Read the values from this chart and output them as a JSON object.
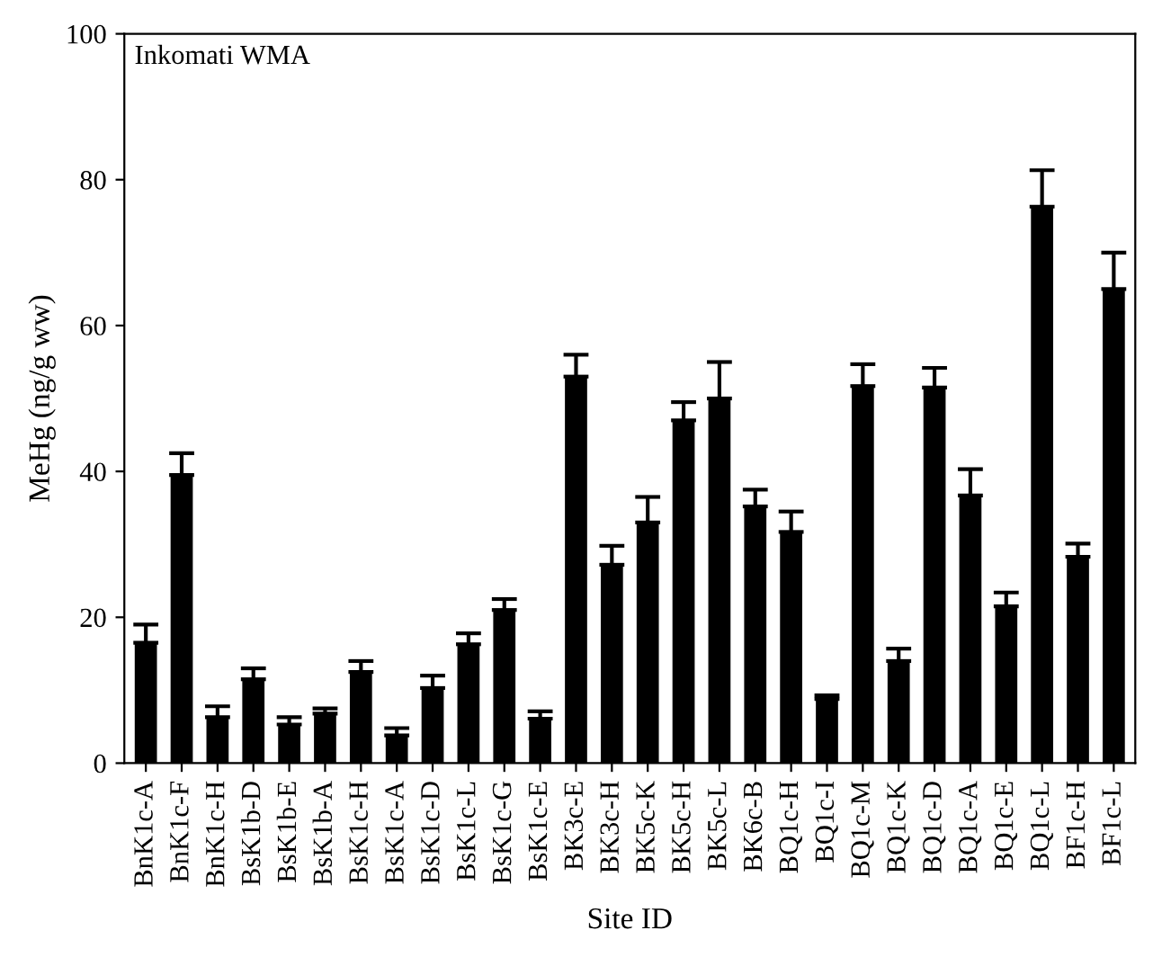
{
  "chart_data": {
    "type": "bar",
    "categories": [
      "BnK1c-A",
      "BnK1c-F",
      "BnK1c-H",
      "BsK1b-D",
      "BsK1b-E",
      "BsK1b-A",
      "BsK1c-H",
      "BsK1c-A",
      "BsK1c-D",
      "BsK1c-L",
      "BsK1c-G",
      "BsK1c-E",
      "BK3c-E",
      "BK3c-H",
      "BK5c-K",
      "BK5c-H",
      "BK5c-L",
      "BK6c-B",
      "BQ1c-H",
      "BQ1c-I",
      "BQ1c-M",
      "BQ1c-K",
      "BQ1c-D",
      "BQ1c-A",
      "BQ1c-E",
      "BQ1c-L",
      "BF1c-H",
      "BF1c-L"
    ],
    "values": [
      16.5,
      39.5,
      6.3,
      11.5,
      5.3,
      6.8,
      12.5,
      3.8,
      10.3,
      16.3,
      21,
      6.1,
      53,
      27.2,
      33,
      47,
      50,
      35.2,
      31.7,
      8.8,
      51.7,
      14,
      51.5,
      36.7,
      21.5,
      76.3,
      28.3,
      65
    ],
    "errors": [
      2.5,
      3,
      1.5,
      1.5,
      1,
      0.7,
      1.5,
      1,
      1.7,
      1.5,
      1.5,
      1,
      3,
      2.6,
      3.5,
      2.5,
      5,
      2.3,
      2.8,
      0.5,
      3,
      1.7,
      2.7,
      3.6,
      1.9,
      5,
      1.8,
      5
    ],
    "color": "#000000",
    "xlabel": "Site ID",
    "ylabel": "MeHg (ng/g ww)",
    "annotations": [
      "Inkomati WMA"
    ],
    "ylim": [
      0,
      100
    ],
    "yticks": [
      0,
      20,
      40,
      60,
      80,
      100
    ],
    "grid": false,
    "legend": false
  }
}
